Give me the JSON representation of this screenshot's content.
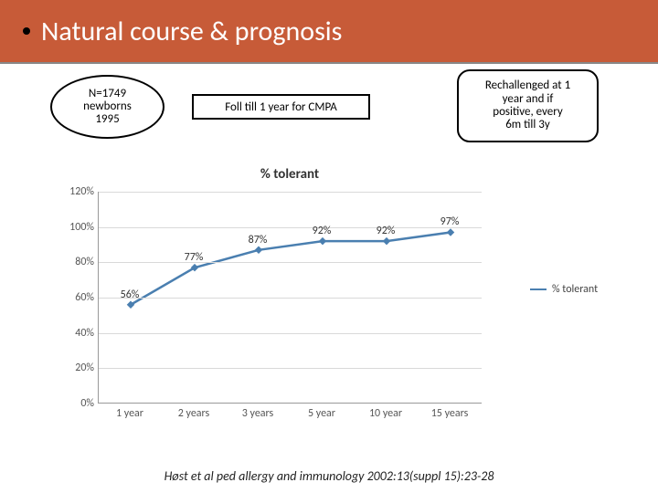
{
  "banner": {
    "title": "Natural course & prognosis",
    "bg_color": "#c75b38",
    "text_color": "#ffffff"
  },
  "callouts": {
    "oval_l1": "N=1749",
    "oval_l2": "newborns",
    "oval_l3": "1995",
    "mid": "Foll till 1 year for CMPA",
    "round_l1": "Rechallenged at 1",
    "round_l2": "year and if",
    "round_l3": "positive, every",
    "round_l4": "6m till 3y"
  },
  "chart": {
    "type": "line",
    "title": "% tolerant",
    "categories": [
      "1 year",
      "2 years",
      "3 years",
      "5 year",
      "10 year",
      "15 years"
    ],
    "values": [
      56,
      77,
      87,
      92,
      92,
      97
    ],
    "value_labels": [
      "56%",
      "77%",
      "87%",
      "92%",
      "92%",
      "97%"
    ],
    "line_color": "#4a7fb0",
    "marker_color": "#4a7fb0",
    "ylim_min": 0,
    "ylim_max": 120,
    "ytick_step": 20,
    "yticks": [
      "0%",
      "20%",
      "40%",
      "60%",
      "80%",
      "100%",
      "120%"
    ],
    "grid_color": "#d9d9d9",
    "axis_color": "#999999",
    "legend_label": "% tolerant",
    "title_fontsize": 15,
    "tick_fontsize": 12
  },
  "citation": "Høst et al  ped allergy and immunology 2002:13(suppl 15):23-28"
}
